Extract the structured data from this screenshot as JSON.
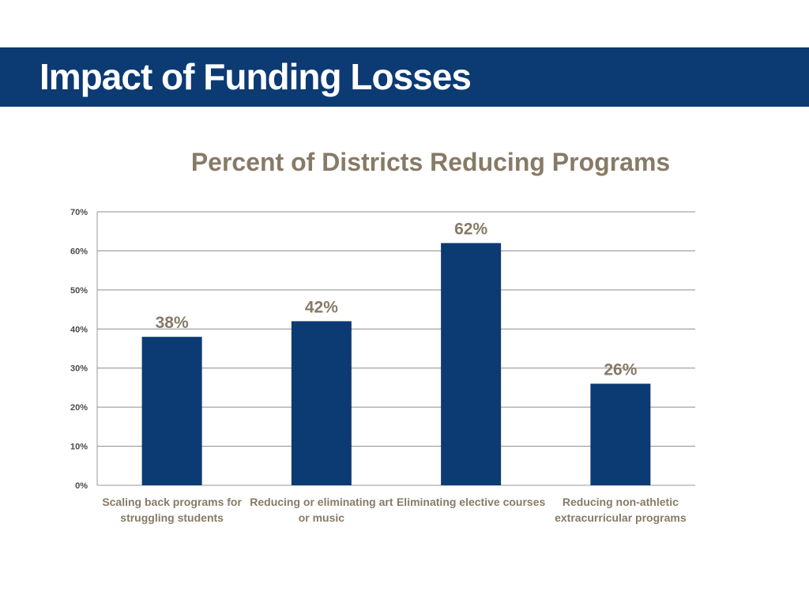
{
  "slide": {
    "title": "Impact of Funding Losses"
  },
  "colors": {
    "title_bar": "#0c3a73",
    "bar": "#0c3a73",
    "text_accent": "#877a66"
  },
  "chart_data": {
    "type": "bar",
    "title": "Percent of Districts Reducing Programs",
    "categories": [
      [
        "Scaling back programs for",
        "struggling students"
      ],
      [
        "Reducing or eliminating art",
        "or music"
      ],
      [
        "Eliminating elective courses"
      ],
      [
        "Reducing non-athletic",
        "extracurricular programs"
      ]
    ],
    "values": [
      38,
      42,
      62,
      26
    ],
    "data_labels": [
      "38%",
      "42%",
      "62%",
      "26%"
    ],
    "yticks": [
      "0%",
      "10%",
      "20%",
      "30%",
      "40%",
      "50%",
      "60%",
      "70%"
    ],
    "ylim": [
      0,
      70
    ],
    "xlabel": "",
    "ylabel": "",
    "grid": true,
    "legend": "none"
  }
}
